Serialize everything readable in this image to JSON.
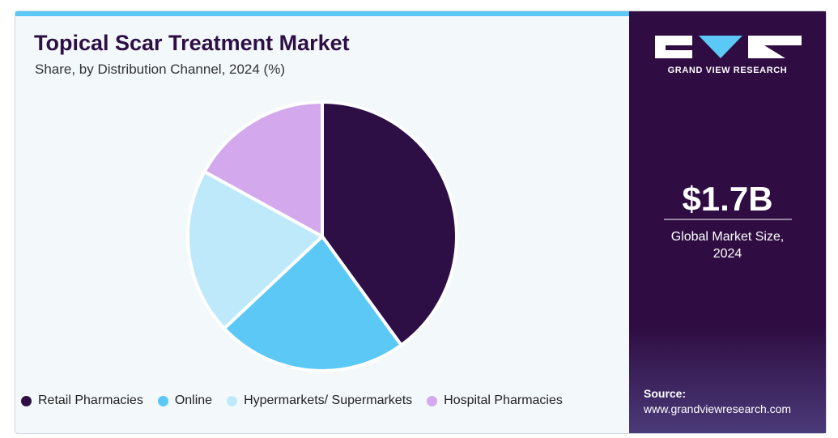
{
  "chart_data": {
    "type": "pie",
    "title": "Topical Scar Treatment Market",
    "subtitle": "Share, by Distribution Channel, 2024 (%)",
    "categories": [
      "Retail Pharmacies",
      "Online",
      "Hypermarkets/ Supermarkets",
      "Hospital Pharmacies"
    ],
    "values": [
      40,
      23,
      20,
      17
    ],
    "colors": [
      "#2e0f45",
      "#5bc8f5",
      "#bde9fa",
      "#d3a8ec"
    ],
    "legend": "bottom"
  },
  "side_panel": {
    "brand": "GRAND VIEW RESEARCH",
    "market_size": "$1.7B",
    "market_size_label": "Global Market Size, 2024",
    "source_label": "Source:",
    "source_url": "www.grandviewresearch.com"
  }
}
